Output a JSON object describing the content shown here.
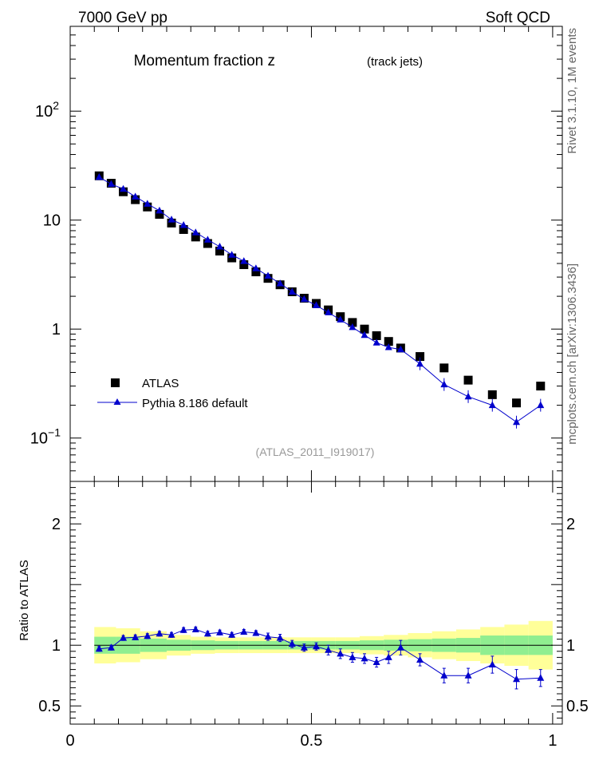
{
  "header": {
    "left": "7000 GeV pp",
    "right": "Soft QCD"
  },
  "side_labels": {
    "rivet": "Rivet 3.1.10,  1M events",
    "mcplots": "mcplots.cern.ch [arXiv:1306.3436]"
  },
  "chart_data": [
    {
      "type": "scatter",
      "title": "Momentum fraction z",
      "subtitle": "(track jets)",
      "reference": "(ATLAS_2011_I919017)",
      "yscale": "log",
      "ylim": [
        0.04,
        600
      ],
      "xlim": [
        0,
        1.02
      ],
      "legend_position": "bottom-left",
      "y_ticks": [
        {
          "value": 100,
          "base": "10",
          "exp": "2"
        },
        {
          "value": 10,
          "base": "10",
          "exp": ""
        },
        {
          "value": 1,
          "base": "1",
          "exp": ""
        },
        {
          "value": 0.1,
          "base": "10",
          "exp": "−1"
        }
      ],
      "series": [
        {
          "name": "ATLAS",
          "color": "#000000",
          "marker": "square",
          "x": [
            0.06,
            0.085,
            0.11,
            0.135,
            0.16,
            0.185,
            0.21,
            0.235,
            0.26,
            0.285,
            0.31,
            0.335,
            0.36,
            0.385,
            0.41,
            0.435,
            0.46,
            0.485,
            0.51,
            0.535,
            0.56,
            0.585,
            0.61,
            0.635,
            0.66,
            0.685,
            0.725,
            0.775,
            0.825,
            0.875,
            0.925,
            0.975
          ],
          "y": [
            25.5,
            21.8,
            18.2,
            15.4,
            13.2,
            11.3,
            9.4,
            8.2,
            7.0,
            6.1,
            5.2,
            4.5,
            3.9,
            3.35,
            2.92,
            2.55,
            2.2,
            1.92,
            1.72,
            1.5,
            1.3,
            1.15,
            1.0,
            0.87,
            0.77,
            0.67,
            0.56,
            0.44,
            0.34,
            0.25,
            0.21,
            0.3
          ]
        },
        {
          "name": "Pythia 8.186 default",
          "color": "#0000cc",
          "marker": "triangle",
          "x": [
            0.06,
            0.085,
            0.11,
            0.135,
            0.16,
            0.185,
            0.21,
            0.235,
            0.26,
            0.285,
            0.31,
            0.335,
            0.36,
            0.385,
            0.41,
            0.435,
            0.46,
            0.485,
            0.51,
            0.535,
            0.56,
            0.585,
            0.61,
            0.635,
            0.66,
            0.685,
            0.725,
            0.775,
            0.825,
            0.875,
            0.925,
            0.975
          ],
          "y": [
            24.8,
            21.4,
            19.3,
            16.4,
            14.1,
            12.2,
            10.1,
            9.0,
            7.7,
            6.6,
            5.7,
            4.8,
            4.2,
            3.6,
            3.08,
            2.62,
            2.2,
            1.88,
            1.65,
            1.42,
            1.22,
            1.04,
            0.88,
            0.75,
            0.68,
            0.65,
            0.48,
            0.31,
            0.24,
            0.2,
            0.14,
            0.2
          ]
        }
      ]
    },
    {
      "type": "scatter",
      "ylabel": "Ratio to ATLAS",
      "ylim": [
        0.35,
        2.35
      ],
      "xlim": [
        0,
        1.02
      ],
      "x_ticks": [
        "0",
        "0.5",
        "1"
      ],
      "y_ticks": [
        "0.5",
        "1",
        "2"
      ],
      "band_colors": {
        "inner": "#90ee90",
        "outer": "#ffff99"
      },
      "band_edges": [
        0.05,
        0.095,
        0.145,
        0.2,
        0.25,
        0.3,
        0.35,
        0.4,
        0.45,
        0.5,
        0.55,
        0.6,
        0.65,
        0.7,
        0.75,
        0.8,
        0.85,
        0.9,
        0.95,
        1.0
      ],
      "band_inner": [
        0.07,
        0.07,
        0.055,
        0.045,
        0.04,
        0.035,
        0.035,
        0.035,
        0.035,
        0.035,
        0.035,
        0.04,
        0.045,
        0.05,
        0.055,
        0.06,
        0.08,
        0.08,
        0.08
      ],
      "band_outer": [
        0.15,
        0.14,
        0.115,
        0.085,
        0.07,
        0.065,
        0.065,
        0.065,
        0.065,
        0.065,
        0.065,
        0.075,
        0.085,
        0.1,
        0.115,
        0.13,
        0.15,
        0.17,
        0.2
      ],
      "series": [
        {
          "name": "Pythia 8.186 default",
          "color": "#0000cc",
          "x": [
            0.06,
            0.085,
            0.11,
            0.135,
            0.16,
            0.185,
            0.21,
            0.235,
            0.26,
            0.285,
            0.31,
            0.335,
            0.36,
            0.385,
            0.41,
            0.435,
            0.46,
            0.485,
            0.51,
            0.535,
            0.56,
            0.585,
            0.61,
            0.635,
            0.66,
            0.685,
            0.725,
            0.775,
            0.825,
            0.875,
            0.925,
            0.975
          ],
          "y": [
            0.97,
            0.98,
            1.06,
            1.065,
            1.075,
            1.095,
            1.085,
            1.125,
            1.13,
            1.095,
            1.105,
            1.085,
            1.11,
            1.1,
            1.07,
            1.06,
            1.01,
            0.98,
            0.99,
            0.96,
            0.93,
            0.9,
            0.89,
            0.86,
            0.9,
            0.98,
            0.88,
            0.75,
            0.75,
            0.84,
            0.72,
            0.73
          ],
          "err": [
            0.02,
            0.02,
            0.02,
            0.02,
            0.02,
            0.02,
            0.02,
            0.02,
            0.02,
            0.02,
            0.02,
            0.02,
            0.02,
            0.02,
            0.03,
            0.03,
            0.03,
            0.03,
            0.03,
            0.04,
            0.04,
            0.04,
            0.04,
            0.04,
            0.05,
            0.06,
            0.05,
            0.06,
            0.06,
            0.07,
            0.08,
            0.07
          ]
        }
      ]
    }
  ]
}
